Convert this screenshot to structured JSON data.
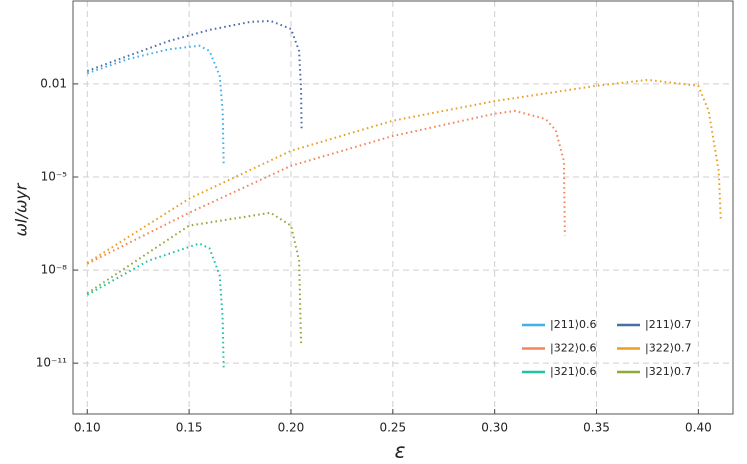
{
  "chart_data": {
    "type": "line",
    "ylog": true,
    "grid": true,
    "legend": "lower right",
    "xlabel": "ε",
    "ylabel": "ωI/ωyr",
    "xlim": [
      0.093,
      0.417
    ],
    "ylim": [
      4.7,
      2.3e-13
    ],
    "xticks": [
      {
        "value": 0.1,
        "label": "0.10"
      },
      0.15,
      {
        "value": 0.2,
        "label": "0.20"
      },
      0.25,
      {
        "value": 0.3,
        "label": "0.30"
      },
      0.35,
      {
        "value": 0.4,
        "label": "0.40"
      }
    ],
    "yticks": [
      {
        "value": 1e-11,
        "label": "10⁻¹¹"
      },
      {
        "value": 1e-08,
        "label": "10⁻⁸"
      },
      {
        "value": 1e-05,
        "label": "10⁻⁵"
      },
      0.01
    ],
    "series": [
      {
        "name": "|211⟩0.6",
        "color": "#3fb0ee",
        "x": [
          0.1,
          0.12,
          0.14,
          0.155,
          0.16,
          0.165,
          0.1665,
          0.167
        ],
        "values": [
          0.022,
          0.063,
          0.13,
          0.17,
          0.115,
          0.018,
          0.0013,
          2.3e-05
        ]
      },
      {
        "name": "|211⟩0.7",
        "color": "#4a6fa8",
        "x": [
          0.1,
          0.12,
          0.14,
          0.16,
          0.18,
          0.19,
          0.2,
          0.204,
          0.205,
          0.2052
        ],
        "values": [
          0.026,
          0.08,
          0.24,
          0.55,
          1.0,
          1.07,
          0.59,
          0.115,
          0.006,
          0.0003
        ]
      },
      {
        "name": "|322⟩0.6",
        "color": "#f5845c",
        "x": [
          0.1,
          0.15,
          0.2,
          0.25,
          0.3,
          0.31,
          0.325,
          0.33,
          0.334,
          0.3345
        ],
        "values": [
          1.6e-08,
          7e-07,
          2.3e-05,
          0.00021,
          0.0011,
          0.00135,
          0.00074,
          0.00032,
          3.2e-05,
          1.3e-07
        ]
      },
      {
        "name": "|322⟩0.7",
        "color": "#e9a020",
        "x": [
          0.1,
          0.15,
          0.2,
          0.25,
          0.3,
          0.35,
          0.375,
          0.4,
          0.405,
          0.41,
          0.411
        ],
        "values": [
          1.7e-08,
          2e-06,
          7e-05,
          0.00065,
          0.0028,
          0.0087,
          0.0135,
          0.0087,
          0.00135,
          1.6e-05,
          4e-07
        ]
      },
      {
        "name": "|321⟩0.6",
        "color": "#1ec2a6",
        "x": [
          0.1,
          0.13,
          0.155,
          0.16,
          0.165,
          0.1665,
          0.167
        ],
        "values": [
          1.6e-09,
          2e-08,
          7.2e-08,
          5e-08,
          6.8e-09,
          2.5e-10,
          6e-12
        ]
      },
      {
        "name": "|321⟩0.7",
        "color": "#8eab38",
        "x": [
          0.1,
          0.15,
          0.19,
          0.2,
          0.204,
          0.205
        ],
        "values": [
          1.8e-09,
          2.7e-07,
          7e-07,
          2.7e-07,
          2e-08,
          4e-11
        ]
      }
    ]
  }
}
